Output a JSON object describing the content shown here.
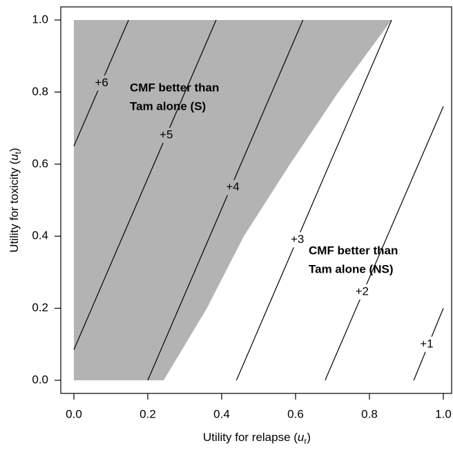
{
  "chart_data": {
    "type": "contour",
    "region": {
      "name": "CMF better than Tam alone (S)",
      "color": "#b3b3b3",
      "x": [
        0,
        0,
        0.86,
        0.716,
        0.585,
        0.46,
        0.36,
        0.243
      ],
      "y": [
        0,
        1,
        1,
        0.8,
        0.6,
        0.4,
        0.2,
        0
      ]
    },
    "series": [
      {
        "name": "+6",
        "color": "#000000",
        "x": [
          0,
          0.148
        ],
        "y": [
          0.65,
          1.0
        ]
      },
      {
        "name": "+5",
        "color": "#000000",
        "x": [
          0,
          0.385
        ],
        "y": [
          0.085,
          1.0
        ]
      },
      {
        "name": "+4",
        "color": "#000000",
        "x": [
          0.2,
          0.62
        ],
        "y": [
          0,
          1.0
        ]
      },
      {
        "name": "+3",
        "color": "#000000",
        "x": [
          0.44,
          0.86
        ],
        "y": [
          0,
          1.0
        ]
      },
      {
        "name": "+2",
        "color": "#000000",
        "x": [
          0.68,
          1.0
        ],
        "y": [
          0,
          0.76
        ]
      },
      {
        "name": "+1",
        "color": "#000000",
        "x": [
          0.92,
          1.0
        ],
        "y": [
          0,
          0.2
        ]
      }
    ],
    "annotations": [
      {
        "lines": [
          "CMF better than",
          "Tam alone (S)"
        ]
      },
      {
        "lines": [
          "CMF better than",
          "Tam alone (NS)"
        ]
      }
    ],
    "xlabel": {
      "text": "Utility for relapse (",
      "var": "u",
      "sub": "r",
      "close": ")"
    },
    "ylabel": {
      "text": "Utility for toxicity (",
      "var": "u",
      "sub": "t",
      "close": ")"
    },
    "xlim": [
      0,
      1
    ],
    "ylim": [
      0,
      1
    ],
    "xticks": [
      {
        "value": 0,
        "label": "0.0"
      },
      {
        "value": 0.2,
        "label": "0.2"
      },
      {
        "value": 0.4,
        "label": "0.4"
      },
      {
        "value": 0.6,
        "label": "0.6"
      },
      {
        "value": 0.8,
        "label": "0.8"
      },
      {
        "value": 1,
        "label": "1.0"
      }
    ],
    "yticks": [
      {
        "value": 0,
        "label": "0.0"
      },
      {
        "value": 0.2,
        "label": "0.2"
      },
      {
        "value": 0.4,
        "label": "0.4"
      },
      {
        "value": 0.6,
        "label": "0.6"
      },
      {
        "value": 0.8,
        "label": "0.8"
      },
      {
        "value": 1,
        "label": "1.0"
      }
    ]
  }
}
